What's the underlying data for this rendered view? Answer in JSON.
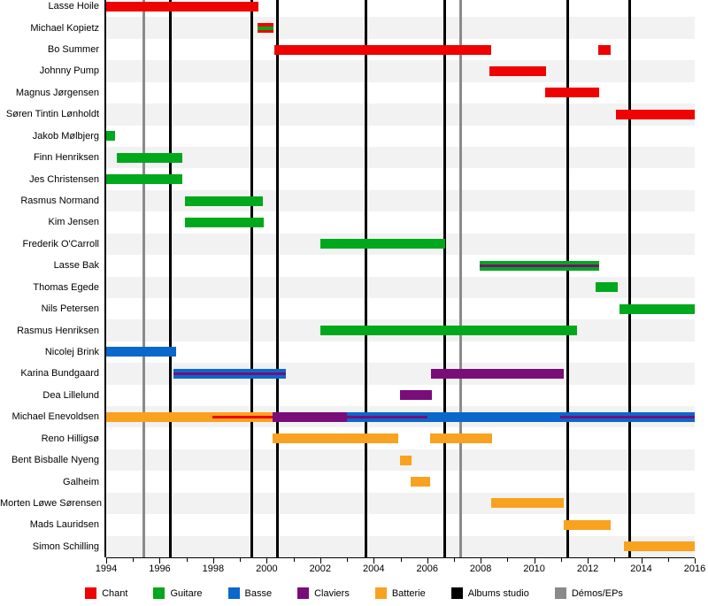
{
  "chart_data": {
    "type": "bar",
    "subtype": "timeline-gantt",
    "title": "",
    "xlabel": "",
    "ylabel": "",
    "xlim": [
      1994,
      2016
    ],
    "grid": false,
    "axis": {
      "tick_start": 1994,
      "tick_end": 2016,
      "minor_step": 1,
      "major_step": 2,
      "tick_labels": [
        "1994",
        "1996",
        "1998",
        "2000",
        "2002",
        "2004",
        "2006",
        "2008",
        "2010",
        "2012",
        "2014",
        "2016"
      ]
    },
    "roles": {
      "chant": "#ee0202",
      "guitare": "#00a81c",
      "basse": "#0a68cc",
      "claviers": "#7a0d7a",
      "batterie": "#f9a21f",
      "albums": "#000000",
      "demos": "#8a8a8a"
    },
    "band_color": "#f2f2f2",
    "events": {
      "albums_studio": [
        1996.4,
        1999.45,
        2000.4,
        2003.7,
        2006.67,
        2011.26,
        2013.58
      ],
      "demos_eps": [
        1995.41,
        2007.25
      ]
    },
    "rows": [
      {
        "name": "Lasse Hoile",
        "bars": [
          {
            "role": "chant",
            "start": 1994,
            "end": 1999.7
          }
        ]
      },
      {
        "name": "Michael Kopietz",
        "bars": [
          {
            "role": "chant",
            "start": 1999.66,
            "end": 2000.26,
            "stripes": [
              {
                "role": "guitare",
                "thick": true
              }
            ]
          }
        ]
      },
      {
        "name": "Bo Summer",
        "bars": [
          {
            "role": "chant",
            "start": 2000.3,
            "end": 2008.4
          },
          {
            "role": "chant",
            "start": 2012.4,
            "end": 2012.87
          }
        ]
      },
      {
        "name": "Johnny Pump",
        "bars": [
          {
            "role": "chant",
            "start": 2008.33,
            "end": 2010.45
          }
        ]
      },
      {
        "name": "Magnus Jørgensen",
        "bars": [
          {
            "role": "chant",
            "start": 2010.4,
            "end": 2012.43
          }
        ]
      },
      {
        "name": "Søren Tintin Lønholdt",
        "bars": [
          {
            "role": "chant",
            "start": 2013.05,
            "end": 2016
          }
        ]
      },
      {
        "name": "Jakob Mølbjerg",
        "bars": [
          {
            "role": "guitare",
            "start": 1994,
            "end": 1994.33
          }
        ]
      },
      {
        "name": "Finn Henriksen",
        "bars": [
          {
            "role": "guitare",
            "start": 1994.4,
            "end": 1996.85
          }
        ]
      },
      {
        "name": "Jes Christensen",
        "bars": [
          {
            "role": "guitare",
            "start": 1994,
            "end": 1996.85
          }
        ]
      },
      {
        "name": "Rasmus Normand",
        "bars": [
          {
            "role": "guitare",
            "start": 1996.96,
            "end": 1999.86
          }
        ]
      },
      {
        "name": "Kim Jensen",
        "bars": [
          {
            "role": "guitare",
            "start": 1996.96,
            "end": 1999.88
          }
        ]
      },
      {
        "name": "Frederik O'Carroll",
        "bars": [
          {
            "role": "guitare",
            "start": 2002,
            "end": 2006.67
          }
        ]
      },
      {
        "name": "Lasse Bak",
        "bars": [
          {
            "role": "guitare",
            "start": 2007.96,
            "end": 2012.43,
            "stripes": [
              {
                "role": "claviers"
              }
            ]
          }
        ]
      },
      {
        "name": "Thomas Egede",
        "bars": [
          {
            "role": "guitare",
            "start": 2012.3,
            "end": 2013.12
          }
        ]
      },
      {
        "name": "Nils Petersen",
        "bars": [
          {
            "role": "guitare",
            "start": 2013.2,
            "end": 2016
          }
        ]
      },
      {
        "name": "Rasmus Henriksen",
        "bars": [
          {
            "role": "guitare",
            "start": 2002,
            "end": 2011.6
          }
        ]
      },
      {
        "name": "Nicolej Brink",
        "bars": [
          {
            "role": "basse",
            "start": 1994,
            "end": 1996.6
          }
        ]
      },
      {
        "name": "Karina Bundgaard",
        "bars": [
          {
            "role": "basse",
            "start": 1996.5,
            "end": 2000.73,
            "stripes": [
              {
                "role": "claviers"
              }
            ]
          },
          {
            "role": "claviers",
            "start": 2006.13,
            "end": 2011.1
          }
        ]
      },
      {
        "name": "Dea Lillelund",
        "bars": [
          {
            "role": "claviers",
            "start": 2004.98,
            "end": 2006.16
          }
        ]
      },
      {
        "name": "Michael Enevoldsen",
        "bars": [
          {
            "role": "batterie",
            "start": 1994,
            "end": 2000.22,
            "stripes": [
              {
                "role": "chant",
                "start": 1997.97,
                "end": 2000.22
              }
            ]
          },
          {
            "role": "claviers",
            "start": 2000.22,
            "end": 2003.0
          },
          {
            "role": "basse",
            "start": 2003.0,
            "end": 2016,
            "stripes": [
              {
                "role": "claviers",
                "start": 2003.0,
                "end": 2006.0
              },
              {
                "role": "claviers",
                "start": 2010.97,
                "end": 2016
              }
            ]
          }
        ]
      },
      {
        "name": "Reno Hilligsø",
        "bars": [
          {
            "role": "batterie",
            "start": 2000.23,
            "end": 2004.92
          },
          {
            "role": "batterie",
            "start": 2006.1,
            "end": 2008.42
          }
        ]
      },
      {
        "name": "Bent Bisballe Nyeng",
        "bars": [
          {
            "role": "batterie",
            "start": 2004.97,
            "end": 2005.41
          }
        ]
      },
      {
        "name": "Galheim",
        "bars": [
          {
            "role": "batterie",
            "start": 2005.39,
            "end": 2006.1
          }
        ]
      },
      {
        "name": "Morten Løwe Sørensen",
        "bars": [
          {
            "role": "batterie",
            "start": 2008.4,
            "end": 2011.1
          }
        ]
      },
      {
        "name": "Mads Lauridsen",
        "bars": [
          {
            "role": "batterie",
            "start": 2011.1,
            "end": 2012.87
          }
        ]
      },
      {
        "name": "Simon Schilling",
        "bars": [
          {
            "role": "batterie",
            "start": 2013.35,
            "end": 2016
          }
        ]
      }
    ],
    "legend": [
      {
        "label": "Chant",
        "role": "chant"
      },
      {
        "label": "Guitare",
        "role": "guitare"
      },
      {
        "label": "Basse",
        "role": "basse"
      },
      {
        "label": "Claviers",
        "role": "claviers"
      },
      {
        "label": "Batterie",
        "role": "batterie"
      },
      {
        "label": "Albums studio",
        "role": "albums"
      },
      {
        "label": "Démos/EPs",
        "role": "demos"
      }
    ],
    "legend_position": "bottom-center"
  }
}
